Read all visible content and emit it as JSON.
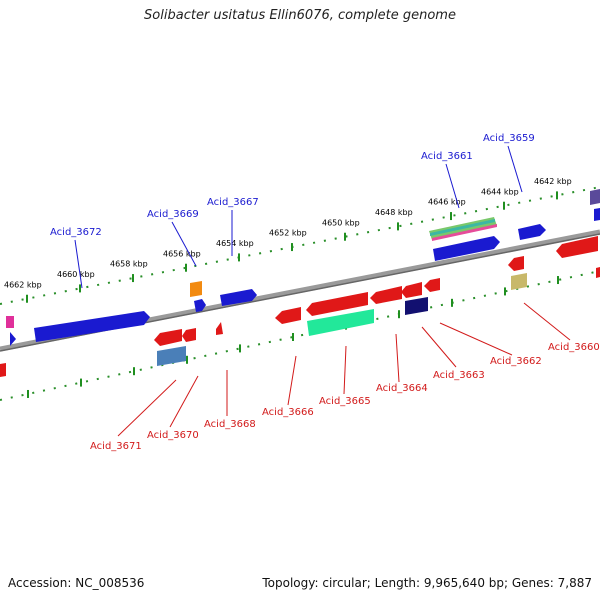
{
  "title": "Solibacter usitatus Ellin6076, complete genome",
  "footer": {
    "accession": "Accession: NC_008536",
    "summary": "Topology: circular; Length: 9,965,640 bp; Genes: 7,887"
  },
  "colors": {
    "forward_label": "#1a1ad0",
    "reverse_label": "#d21a1a",
    "backbone": "#8a8a8a",
    "ruler": "#1f8f1f"
  },
  "ruler_ticks": [
    "4662 kbp",
    "4660 kbp",
    "4658 kbp",
    "4656 kbp",
    "4654 kbp",
    "4652 kbp",
    "4650 kbp",
    "4648 kbp",
    "4646 kbp",
    "4644 kbp",
    "4642 kbp"
  ],
  "forward_labels": [
    "Acid_3672",
    "Acid_3669",
    "Acid_3667",
    "Acid_3661",
    "Acid_3659"
  ],
  "reverse_labels": [
    "Acid_3671",
    "Acid_3670",
    "Acid_3668",
    "Acid_3666",
    "Acid_3665",
    "Acid_3664",
    "Acid_3663",
    "Acid_3662",
    "Acid_3660"
  ]
}
